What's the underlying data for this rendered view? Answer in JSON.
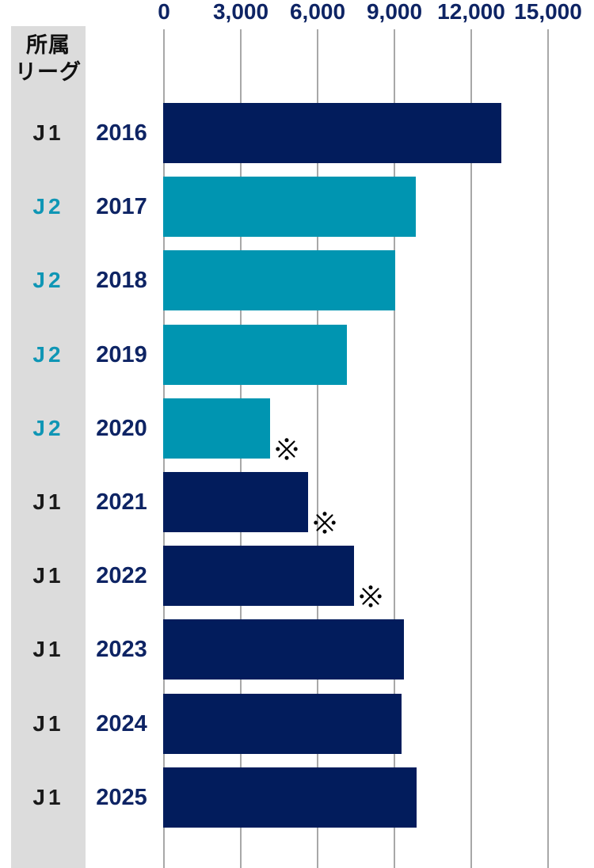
{
  "header": {
    "league_column_title_line1": "所属",
    "league_column_title_line2": "リーグ"
  },
  "colors": {
    "band_bg": "#dcdcdc",
    "band_title_text": "#111111",
    "axis_text": "#0e2464",
    "gridline": "#a8a8a8",
    "j1_bar": "#021c5c",
    "j2_bar": "#0095b1",
    "j1_label": "#1a1a1a",
    "j2_label": "#0f96b5",
    "year_label": "#0e2464",
    "note_mark": "#000000"
  },
  "chart_data": {
    "type": "bar",
    "orientation": "horizontal",
    "title": "",
    "league_column_header": "所属リーグ",
    "value_axis": {
      "position": "top",
      "min": 0,
      "max": 15000,
      "ticks": [
        0,
        3000,
        6000,
        9000,
        12000,
        15000
      ],
      "tick_labels": [
        "0",
        "3,000",
        "6,000",
        "9,000",
        "12,000",
        "15,000"
      ],
      "gridlines": true
    },
    "note_symbol": "※",
    "series_colors": {
      "J1": "#021c5c",
      "J2": "#0095b1"
    },
    "rows": [
      {
        "year": "2016",
        "league": "J1",
        "value": 13150,
        "note": false
      },
      {
        "year": "2017",
        "league": "J2",
        "value": 9800,
        "note": false
      },
      {
        "year": "2018",
        "league": "J2",
        "value": 9000,
        "note": false
      },
      {
        "year": "2019",
        "league": "J2",
        "value": 7100,
        "note": false
      },
      {
        "year": "2020",
        "league": "J2",
        "value": 4100,
        "note": true
      },
      {
        "year": "2021",
        "league": "J1",
        "value": 5600,
        "note": true
      },
      {
        "year": "2022",
        "league": "J1",
        "value": 7400,
        "note": true
      },
      {
        "year": "2023",
        "league": "J1",
        "value": 9350,
        "note": false
      },
      {
        "year": "2024",
        "league": "J1",
        "value": 9250,
        "note": false
      },
      {
        "year": "2025",
        "league": "J1",
        "value": 9850,
        "note": false
      }
    ]
  }
}
